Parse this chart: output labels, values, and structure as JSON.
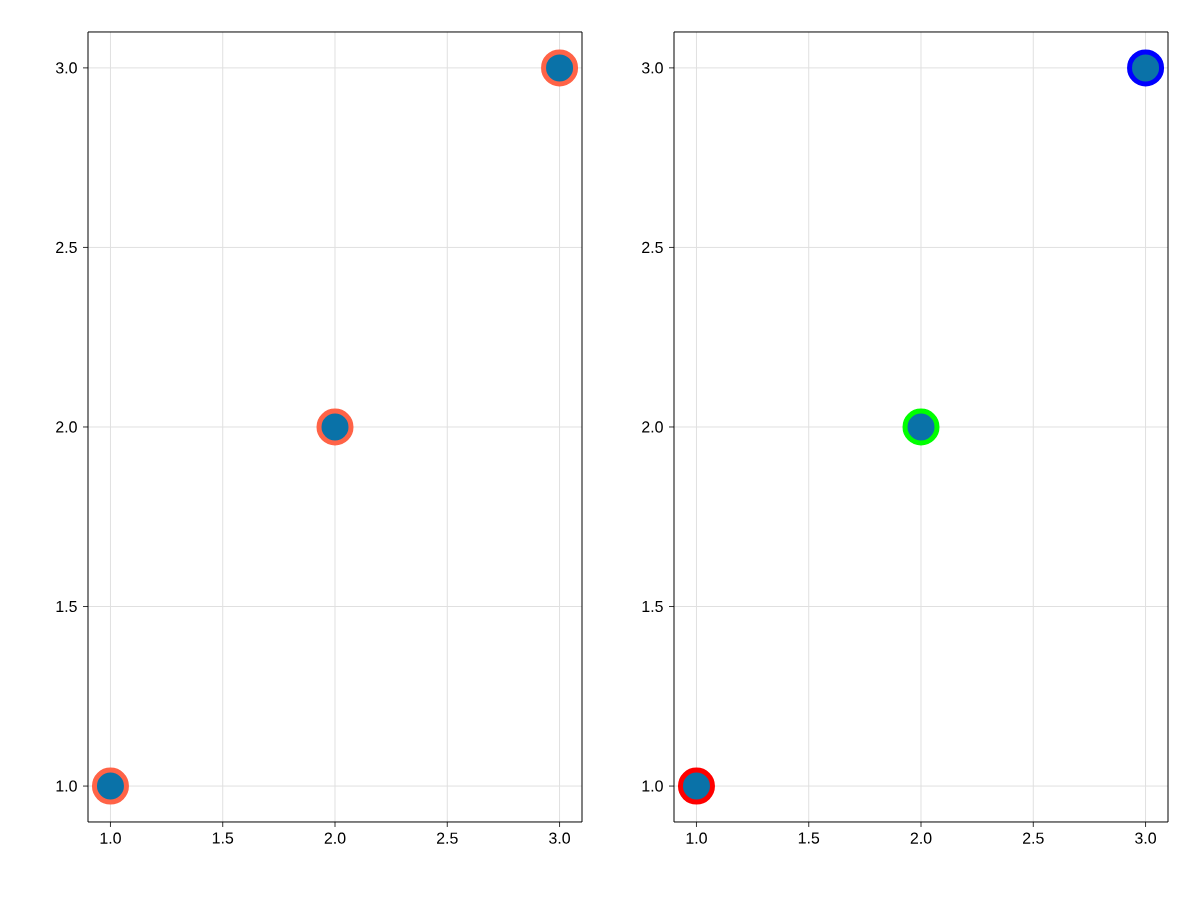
{
  "chart_data": [
    {
      "type": "scatter",
      "x": [
        1,
        2,
        3
      ],
      "series": [
        {
          "color": "#0a72a8",
          "colors": [
            "#ff6347",
            "#ff6347",
            "#ff6347"
          ],
          "values": [
            1,
            2,
            3
          ]
        }
      ],
      "xlim": [
        0.9,
        3.1
      ],
      "ylim": [
        0.9,
        3.1
      ],
      "xticks": [
        {
          "value": 1,
          "label": "1.0"
        },
        {
          "value": 1.5,
          "label": "1.5"
        },
        {
          "value": 2,
          "label": "2.0"
        },
        {
          "value": 2.5,
          "label": "2.5"
        },
        {
          "value": 3,
          "label": "3.0"
        }
      ],
      "yticks": [
        {
          "value": 1,
          "label": "1.0"
        },
        {
          "value": 1.5,
          "label": "1.5"
        },
        {
          "value": 2,
          "label": "2.0"
        },
        {
          "value": 2.5,
          "label": "2.5"
        },
        {
          "value": 3,
          "label": "3.0"
        }
      ],
      "grid": true,
      "marker": "circle"
    },
    {
      "type": "scatter",
      "x": [
        1,
        2,
        3
      ],
      "series": [
        {
          "color": "#0a72a8",
          "colors": [
            "#ff0000",
            "#00ff00",
            "#0000ff"
          ],
          "values": [
            1,
            2,
            3
          ]
        }
      ],
      "xlim": [
        0.9,
        3.1
      ],
      "ylim": [
        0.9,
        3.1
      ],
      "xticks": [
        {
          "value": 1,
          "label": "1.0"
        },
        {
          "value": 1.5,
          "label": "1.5"
        },
        {
          "value": 2,
          "label": "2.0"
        },
        {
          "value": 2.5,
          "label": "2.5"
        },
        {
          "value": 3,
          "label": "3.0"
        }
      ],
      "yticks": [
        {
          "value": 1,
          "label": "1.0"
        },
        {
          "value": 1.5,
          "label": "1.5"
        },
        {
          "value": 2,
          "label": "2.0"
        },
        {
          "value": 2.5,
          "label": "2.5"
        },
        {
          "value": 3,
          "label": "3.0"
        }
      ],
      "grid": true,
      "marker": "circle"
    }
  ]
}
